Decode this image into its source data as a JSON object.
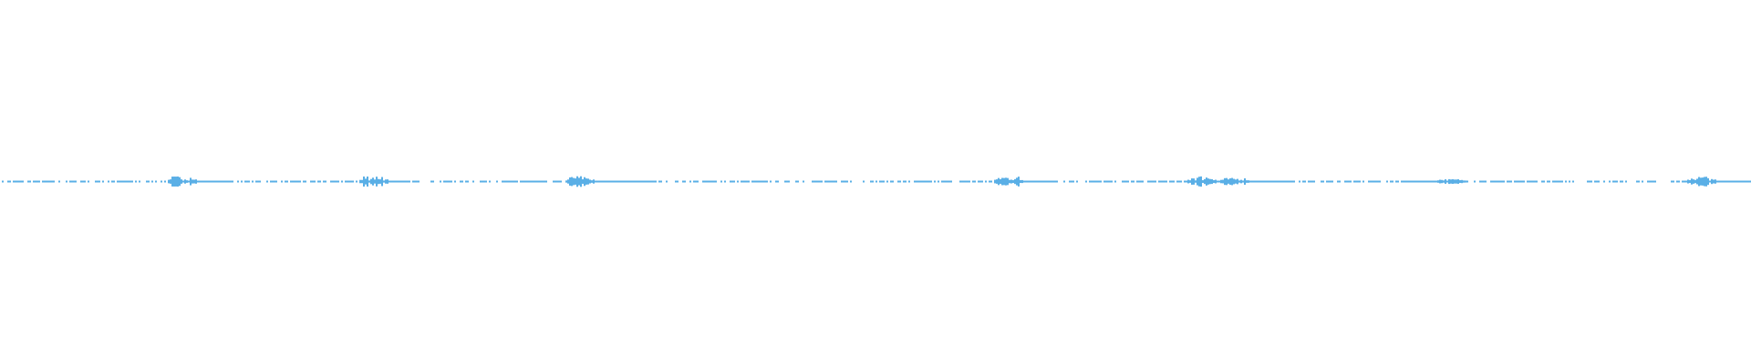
{
  "waveform": {
    "color": "#5aafe6",
    "background": "#ffffff"
  }
}
